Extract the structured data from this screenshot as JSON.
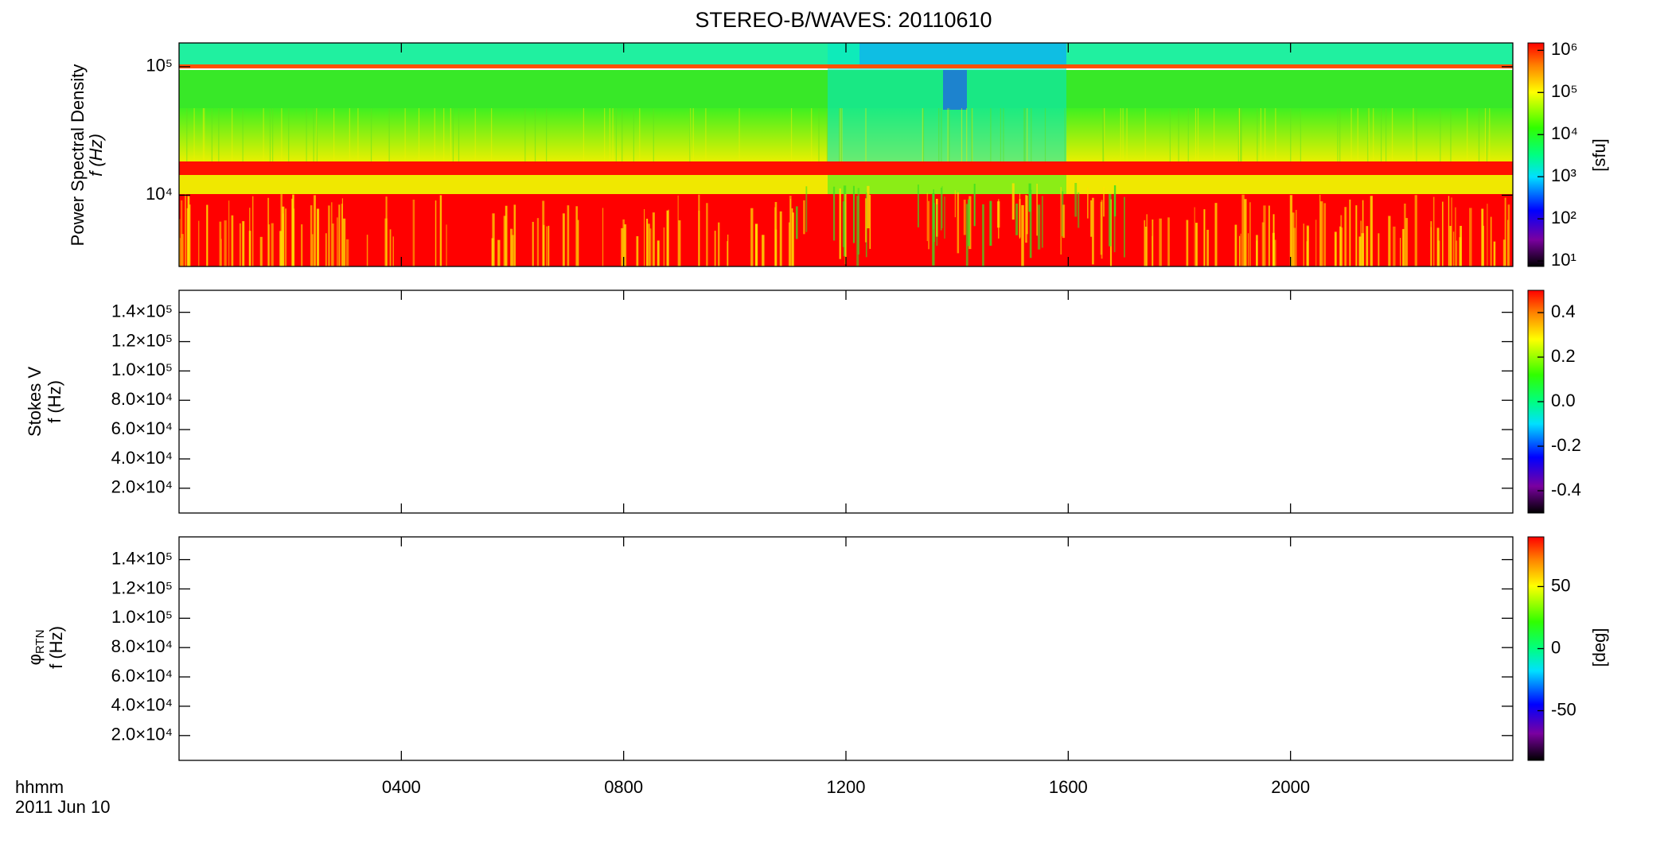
{
  "chart_data": {
    "type": "spectrogram",
    "title": "STEREO-B/WAVES: 20110610",
    "x_label": "hhmm",
    "x_date": "2011 Jun 10",
    "xlim": [
      0,
      24
    ],
    "xticks": [
      {
        "value": 4,
        "label": "0400"
      },
      {
        "value": 8,
        "label": "0800"
      },
      {
        "value": 12,
        "label": "1200"
      },
      {
        "value": 16,
        "label": "1600"
      },
      {
        "value": 20,
        "label": "2000"
      }
    ],
    "panels": [
      {
        "ylabel": "Power Spectral Density",
        "ylabel_unit": "f (Hz)",
        "log_y": true,
        "ylim": [
          2790,
          153000
        ],
        "yticks": [
          {
            "value": 10000,
            "label": "10⁴"
          },
          {
            "value": 100000,
            "label": "10⁵"
          }
        ],
        "colorbar": {
          "log": true,
          "lim": [
            7.4,
            1500000
          ],
          "label": "[sfu]",
          "ticks": [
            {
              "value": 10,
              "label": "10¹"
            },
            {
              "value": 100,
              "label": "10²"
            },
            {
              "value": 1000,
              "label": "10³"
            },
            {
              "value": 10000,
              "label": "10⁴"
            },
            {
              "value": 100000,
              "label": "10⁵"
            },
            {
              "value": 1000000,
              "label": "10⁶"
            }
          ]
        }
      },
      {
        "ylabel": "Stokes V",
        "ylabel_unit": "f (Hz)",
        "log_y": false,
        "ylim": [
          3100,
          155000
        ],
        "yticks": [
          {
            "value": 20000,
            "label": "2.0×10⁴"
          },
          {
            "value": 40000,
            "label": "4.0×10⁴"
          },
          {
            "value": 60000,
            "label": "6.0×10⁴"
          },
          {
            "value": 80000,
            "label": "8.0×10⁴"
          },
          {
            "value": 100000,
            "label": "1.0×10⁵"
          },
          {
            "value": 120000,
            "label": "1.2×10⁵"
          },
          {
            "value": 140000,
            "label": "1.4×10⁵"
          }
        ],
        "colorbar": {
          "log": false,
          "lim": [
            -0.5,
            0.5
          ],
          "ticks": [
            -0.4,
            -0.2,
            {
              "value": 0,
              "label": "0.0"
            },
            0.2,
            0.4
          ]
        }
      },
      {
        "ylabel": "φ",
        "ylabel_sub": "RTN",
        "ylabel_unit": "f (Hz)",
        "log_y": false,
        "ylim": [
          3070,
          155500
        ],
        "yticks": [
          {
            "value": 20000,
            "label": "2.0×10⁴"
          },
          {
            "value": 40000,
            "label": "4.0×10⁴"
          },
          {
            "value": 60000,
            "label": "6.0×10⁴"
          },
          {
            "value": 80000,
            "label": "8.0×10⁴"
          },
          {
            "value": 100000,
            "label": "1.0×10⁵"
          },
          {
            "value": 120000,
            "label": "1.2×10⁵"
          },
          {
            "value": 140000,
            "label": "1.4×10⁵"
          }
        ],
        "colorbar": {
          "log": false,
          "lim": [
            -90,
            90
          ],
          "label": "[deg]",
          "ticks": [
            -50,
            0,
            50
          ]
        }
      }
    ]
  }
}
